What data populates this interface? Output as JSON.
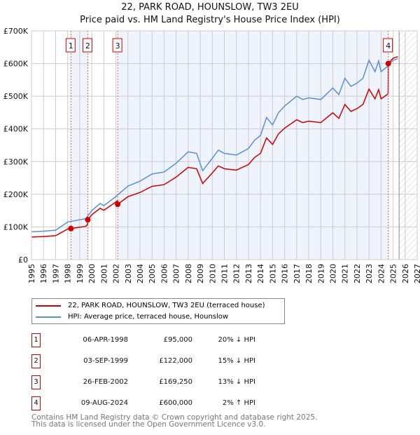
{
  "chart_data": {
    "type": "line",
    "title": "22, PARK ROAD, HOUNSLOW, TW3 2EU",
    "subtitle": "Price paid vs. HM Land Registry's House Price Index (HPI)",
    "xlim": [
      1995,
      2027
    ],
    "ylim": [
      0,
      700000
    ],
    "y_ticks": [
      "£0",
      "£100K",
      "£200K",
      "£300K",
      "£400K",
      "£500K",
      "£600K",
      "£700K"
    ],
    "x_ticks": [
      "1995",
      "1996",
      "1997",
      "1998",
      "1999",
      "2000",
      "2001",
      "2002",
      "2003",
      "2004",
      "2005",
      "2006",
      "2007",
      "2008",
      "2009",
      "2010",
      "2011",
      "2012",
      "2013",
      "2014",
      "2015",
      "2016",
      "2017",
      "2018",
      "2019",
      "2020",
      "2021",
      "2022",
      "2023",
      "2024",
      "2025",
      "2026",
      "2027"
    ],
    "grid": true,
    "hpi": {
      "name": "HPI: Average price, terraced house, Hounslow",
      "color": "#5b8fd4",
      "x": [
        1995,
        1996,
        1997,
        1998,
        1999,
        1999.5,
        2000,
        2000.7,
        2001,
        2002,
        2003,
        2004,
        2005,
        2006,
        2007,
        2008,
        2008.7,
        2009.2,
        2010,
        2010.5,
        2011,
        2012,
        2013,
        2013.5,
        2014,
        2014.5,
        2015,
        2015.5,
        2016,
        2017,
        2017.5,
        2018,
        2019,
        2020,
        2020.5,
        2021,
        2021.5,
        2022,
        2022.5,
        2023,
        2023.5,
        2023.8,
        2024,
        2024.5,
        2025,
        2025.4
      ],
      "y": [
        85000,
        87000,
        90000,
        115000,
        122000,
        125000,
        150000,
        172000,
        165000,
        193000,
        225000,
        240000,
        262000,
        268000,
        295000,
        330000,
        325000,
        272000,
        310000,
        335000,
        325000,
        320000,
        340000,
        365000,
        380000,
        435000,
        412000,
        450000,
        470000,
        500000,
        490000,
        495000,
        490000,
        525000,
        505000,
        555000,
        530000,
        540000,
        555000,
        610000,
        575000,
        608000,
        575000,
        590000,
        610000,
        615000
      ]
    },
    "price_paid": {
      "name": "22, PARK ROAD, HOUNSLOW, TW3 2EU (terraced house)",
      "color": "#cc0000"
    },
    "sales": [
      {
        "n": "1",
        "x": 1998.27,
        "date": "06-APR-1998",
        "price": 95000,
        "price_label": "£95,000",
        "hpi": "20% ↓ HPI"
      },
      {
        "n": "2",
        "x": 1999.67,
        "date": "03-SEP-1999",
        "price": 122000,
        "price_label": "£122,000",
        "hpi": "15% ↓ HPI"
      },
      {
        "n": "3",
        "x": 2002.15,
        "date": "26-FEB-2002",
        "price": 169250,
        "price_label": "£169,250",
        "hpi": "13% ↓ HPI"
      },
      {
        "n": "4",
        "x": 2024.6,
        "date": "09-AUG-2024",
        "price": 600000,
        "price_label": "£600,000",
        "hpi": "2% ↑ HPI"
      }
    ],
    "forecast_from": 2025.5,
    "legend_placement": "below"
  },
  "footer": {
    "line1": "Contains HM Land Registry data © Crown copyright and database right 2025.",
    "line2": "This data is licensed under the Open Government Licence v3.0."
  }
}
